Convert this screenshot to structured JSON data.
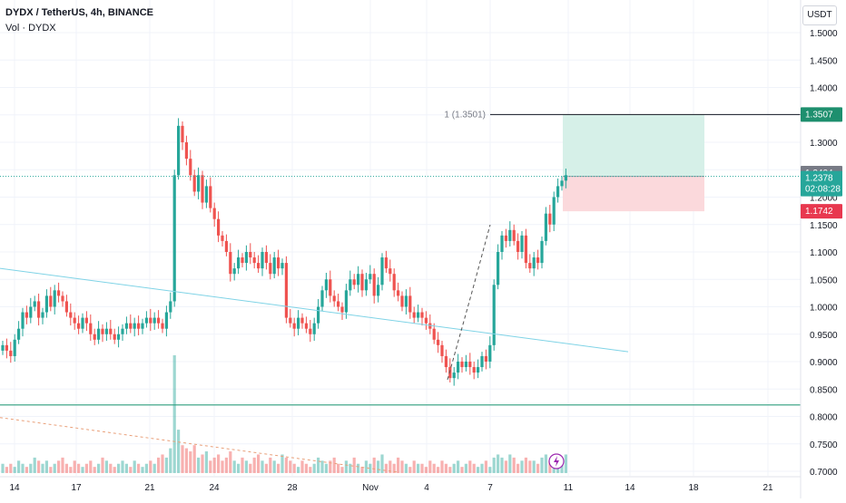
{
  "legend": {
    "symbol_line": "DYDX / TetherUS, 4h, BINANCE",
    "volume_line": "Vol · DYDX"
  },
  "currency_button": "USDT",
  "price_axis": {
    "ticks": [
      "1.5000",
      "1.4500",
      "1.4000",
      "1.3500",
      "1.3000",
      "1.2500",
      "1.2000",
      "1.1500",
      "1.1000",
      "1.0500",
      "1.0000",
      "0.9500",
      "0.9000",
      "0.8500",
      "0.8000",
      "0.7500",
      "0.7000"
    ]
  },
  "time_axis": {
    "ticks": [
      "14",
      "17",
      "21",
      "24",
      "28",
      "Nov",
      "4",
      "7",
      "11",
      "14",
      "18",
      "21"
    ]
  },
  "position_tool": {
    "target_label": "1 (1.3501)",
    "target_price": "1.3507",
    "current_price": "1.2404",
    "last_price": "1.2378",
    "countdown": "02:08:28",
    "stop_price": "1.1742"
  },
  "colors": {
    "up": "#26a69a",
    "down": "#ef5350",
    "trendline": "#7fd3e6",
    "support": "#2e9e7e",
    "profit_zone": "#d6f0e8",
    "loss_zone": "#fbd9dc",
    "target_tag": "#1e8f6e",
    "stop_tag": "#e8384f",
    "gray_tag": "#787b86"
  },
  "chart_data": {
    "type": "candlestick",
    "symbol": "DYDX / TetherUS",
    "timeframe": "4h",
    "exchange": "BINANCE",
    "ylim": [
      0.695,
      1.525
    ],
    "price_ticks": [
      1.5,
      1.45,
      1.4,
      1.35,
      1.3,
      1.25,
      1.2,
      1.15,
      1.1,
      1.05,
      1.0,
      0.95,
      0.9,
      0.85,
      0.8,
      0.75,
      0.7
    ],
    "time_ticks": [
      "14",
      "17",
      "21",
      "24",
      "28",
      "Nov",
      "4",
      "7",
      "11",
      "14",
      "18",
      "21"
    ],
    "closes": [
      0.93,
      0.92,
      0.91,
      0.94,
      0.96,
      0.99,
      0.98,
      1.0,
      1.01,
      0.98,
      0.99,
      1.02,
      1.0,
      1.03,
      1.02,
      1.01,
      0.99,
      0.98,
      0.97,
      0.96,
      0.98,
      0.97,
      0.95,
      0.94,
      0.96,
      0.95,
      0.96,
      0.95,
      0.94,
      0.95,
      0.96,
      0.97,
      0.96,
      0.97,
      0.96,
      0.97,
      0.98,
      0.97,
      0.98,
      0.97,
      0.96,
      0.99,
      1.01,
      1.24,
      1.33,
      1.3,
      1.27,
      1.24,
      1.21,
      1.24,
      1.19,
      1.22,
      1.18,
      1.16,
      1.13,
      1.12,
      1.1,
      1.06,
      1.07,
      1.09,
      1.08,
      1.1,
      1.09,
      1.08,
      1.07,
      1.1,
      1.08,
      1.06,
      1.09,
      1.07,
      1.08,
      0.98,
      0.97,
      0.96,
      0.98,
      0.97,
      0.96,
      0.95,
      0.97,
      1.0,
      1.03,
      1.05,
      1.02,
      1.01,
      1.0,
      0.99,
      1.03,
      1.05,
      1.04,
      1.06,
      1.03,
      1.05,
      1.06,
      1.02,
      1.04,
      1.09,
      1.07,
      1.06,
      1.03,
      1.02,
      1.0,
      1.02,
      0.99,
      0.98,
      0.99,
      0.98,
      0.97,
      0.96,
      0.94,
      0.93,
      0.91,
      0.89,
      0.87,
      0.88,
      0.9,
      0.89,
      0.9,
      0.89,
      0.88,
      0.89,
      0.91,
      0.9,
      0.93,
      1.04,
      1.1,
      1.13,
      1.12,
      1.14,
      1.12,
      1.1,
      1.13,
      1.08,
      1.07,
      1.09,
      1.08,
      1.12,
      1.17,
      1.15,
      1.2,
      1.22,
      1.23,
      1.24
    ],
    "volumes": [
      3,
      2,
      3,
      2,
      4,
      3,
      2,
      3,
      5,
      4,
      3,
      4,
      2,
      3,
      4,
      5,
      3,
      2,
      4,
      3,
      2,
      3,
      4,
      2,
      3,
      5,
      4,
      3,
      2,
      3,
      4,
      3,
      2,
      4,
      3,
      2,
      3,
      4,
      3,
      5,
      6,
      5,
      8,
      38,
      14,
      9,
      8,
      7,
      9,
      5,
      6,
      7,
      4,
      5,
      6,
      4,
      5,
      7,
      4,
      3,
      5,
      4,
      3,
      5,
      6,
      4,
      3,
      5,
      4,
      3,
      6,
      5,
      4,
      3,
      2,
      4,
      3,
      2,
      3,
      5,
      4,
      3,
      4,
      5,
      3,
      2,
      4,
      3,
      5,
      3,
      2,
      4,
      3,
      5,
      4,
      6,
      3,
      4,
      3,
      5,
      4,
      3,
      2,
      4,
      3,
      3,
      2,
      4,
      3,
      2,
      4,
      3,
      2,
      3,
      4,
      2,
      3,
      4,
      3,
      2,
      3,
      4,
      2,
      5,
      6,
      5,
      4,
      6,
      5,
      3,
      4,
      5,
      4,
      4,
      3,
      5,
      6,
      4,
      5,
      6,
      5,
      6
    ],
    "target_price": 1.3507,
    "entry_price": 1.2378,
    "stop_price": 1.1742
  }
}
